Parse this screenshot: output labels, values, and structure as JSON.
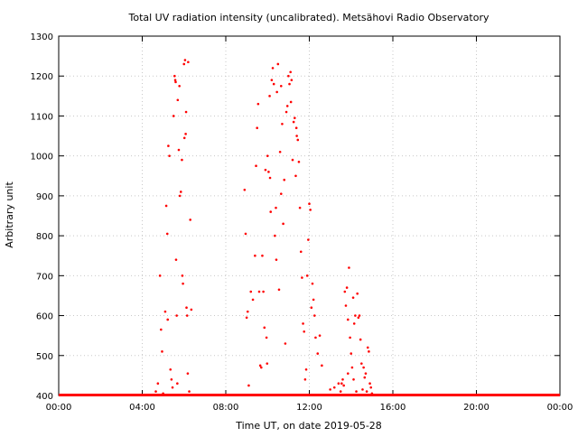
{
  "chart_data": {
    "type": "scatter",
    "title": "Total UV radiation intensity (uncalibrated). Metsähovi Radio Observatory",
    "xlabel": "Time UT, on date 2019-05-28",
    "ylabel": "Arbitrary unit",
    "xlim": [
      0,
      24
    ],
    "ylim": [
      400,
      1300
    ],
    "x_ticks": [
      0,
      4,
      8,
      12,
      16,
      20,
      24
    ],
    "x_tick_labels": [
      "00:00",
      "04:00",
      "08:00",
      "12:00",
      "16:00",
      "20:00",
      "00:00"
    ],
    "y_ticks": [
      400,
      500,
      600,
      700,
      800,
      900,
      1000,
      1100,
      1200,
      1300
    ],
    "y_tick_labels": [
      "400",
      "500",
      "600",
      "700",
      "800",
      "900",
      "1000",
      "1100",
      "1200",
      "1300"
    ],
    "grid": true,
    "legend": "none",
    "colors": {
      "points": "#ff0000",
      "grid": "#c8c8c8",
      "axis": "#000000"
    },
    "baseline": {
      "value": 400,
      "x_from": 0,
      "x_to": 24
    },
    "points": [
      [
        4.65,
        410
      ],
      [
        4.75,
        430
      ],
      [
        4.85,
        700
      ],
      [
        4.9,
        565
      ],
      [
        4.95,
        510
      ],
      [
        5.0,
        405
      ],
      [
        5.1,
        610
      ],
      [
        5.15,
        875
      ],
      [
        5.2,
        805
      ],
      [
        5.22,
        590
      ],
      [
        5.25,
        1025
      ],
      [
        5.3,
        1000
      ],
      [
        5.35,
        465
      ],
      [
        5.4,
        440
      ],
      [
        5.45,
        420
      ],
      [
        5.5,
        1100
      ],
      [
        5.55,
        1200
      ],
      [
        5.6,
        1185
      ],
      [
        5.62,
        740
      ],
      [
        5.65,
        600
      ],
      [
        5.7,
        1140
      ],
      [
        5.75,
        1015
      ],
      [
        5.8,
        900
      ],
      [
        5.85,
        910
      ],
      [
        5.9,
        990
      ],
      [
        5.92,
        700
      ],
      [
        5.95,
        680
      ],
      [
        6.0,
        1230
      ],
      [
        6.05,
        1240
      ],
      [
        6.08,
        1055
      ],
      [
        6.1,
        1110
      ],
      [
        6.12,
        620
      ],
      [
        6.15,
        600
      ],
      [
        6.18,
        455
      ],
      [
        6.2,
        1235
      ],
      [
        6.25,
        410
      ],
      [
        6.3,
        840
      ],
      [
        6.35,
        615
      ],
      [
        5.68,
        430
      ],
      [
        5.78,
        1175
      ],
      [
        6.02,
        1045
      ],
      [
        5.58,
        1190
      ],
      [
        8.9,
        915
      ],
      [
        8.95,
        805
      ],
      [
        9.0,
        595
      ],
      [
        9.05,
        610
      ],
      [
        9.1,
        425
      ],
      [
        9.2,
        660
      ],
      [
        9.3,
        640
      ],
      [
        9.4,
        750
      ],
      [
        9.45,
        975
      ],
      [
        9.5,
        1070
      ],
      [
        9.55,
        1130
      ],
      [
        9.6,
        660
      ],
      [
        9.65,
        475
      ],
      [
        9.7,
        470
      ],
      [
        9.75,
        750
      ],
      [
        9.8,
        660
      ],
      [
        9.85,
        570
      ],
      [
        9.9,
        965
      ],
      [
        9.95,
        545
      ],
      [
        10.0,
        1000
      ],
      [
        10.05,
        960
      ],
      [
        10.1,
        1150
      ],
      [
        10.15,
        860
      ],
      [
        10.2,
        1190
      ],
      [
        10.25,
        1220
      ],
      [
        10.3,
        1180
      ],
      [
        10.35,
        800
      ],
      [
        10.4,
        870
      ],
      [
        10.45,
        1160
      ],
      [
        10.5,
        1230
      ],
      [
        10.55,
        665
      ],
      [
        10.6,
        1010
      ],
      [
        10.65,
        1175
      ],
      [
        10.7,
        1080
      ],
      [
        10.75,
        830
      ],
      [
        10.8,
        940
      ],
      [
        10.85,
        530
      ],
      [
        10.9,
        1110
      ],
      [
        10.95,
        1125
      ],
      [
        11.0,
        1200
      ],
      [
        11.05,
        1180
      ],
      [
        11.1,
        1210
      ],
      [
        11.15,
        1190
      ],
      [
        11.2,
        990
      ],
      [
        11.25,
        1085
      ],
      [
        11.3,
        1095
      ],
      [
        11.35,
        950
      ],
      [
        11.4,
        1050
      ],
      [
        11.45,
        1040
      ],
      [
        11.5,
        985
      ],
      [
        11.55,
        870
      ],
      [
        11.6,
        760
      ],
      [
        11.65,
        695
      ],
      [
        11.7,
        580
      ],
      [
        11.75,
        560
      ],
      [
        11.8,
        440
      ],
      [
        11.85,
        465
      ],
      [
        11.9,
        700
      ],
      [
        11.95,
        790
      ],
      [
        12.0,
        880
      ],
      [
        12.05,
        865
      ],
      [
        12.1,
        620
      ],
      [
        12.15,
        680
      ],
      [
        12.2,
        640
      ],
      [
        12.25,
        600
      ],
      [
        12.3,
        545
      ],
      [
        12.4,
        505
      ],
      [
        12.5,
        550
      ],
      [
        12.6,
        475
      ],
      [
        10.12,
        945
      ],
      [
        10.42,
        740
      ],
      [
        9.98,
        480
      ],
      [
        10.65,
        905
      ],
      [
        11.12,
        1135
      ],
      [
        11.38,
        1070
      ],
      [
        13.0,
        415
      ],
      [
        13.2,
        420
      ],
      [
        13.4,
        430
      ],
      [
        13.5,
        410
      ],
      [
        13.6,
        440
      ],
      [
        13.7,
        660
      ],
      [
        13.75,
        625
      ],
      [
        13.8,
        670
      ],
      [
        13.85,
        590
      ],
      [
        13.9,
        720
      ],
      [
        13.95,
        545
      ],
      [
        14.0,
        505
      ],
      [
        14.05,
        470
      ],
      [
        14.1,
        645
      ],
      [
        14.15,
        580
      ],
      [
        14.2,
        600
      ],
      [
        14.25,
        410
      ],
      [
        14.3,
        655
      ],
      [
        14.35,
        595
      ],
      [
        14.4,
        600
      ],
      [
        14.45,
        540
      ],
      [
        14.5,
        480
      ],
      [
        14.6,
        470
      ],
      [
        14.65,
        445
      ],
      [
        14.7,
        455
      ],
      [
        14.8,
        520
      ],
      [
        14.85,
        510
      ],
      [
        14.9,
        430
      ],
      [
        14.95,
        420
      ],
      [
        15.0,
        405
      ],
      [
        13.55,
        430
      ],
      [
        13.65,
        425
      ],
      [
        14.12,
        440
      ],
      [
        14.55,
        415
      ],
      [
        14.75,
        410
      ],
      [
        13.85,
        455
      ]
    ]
  }
}
